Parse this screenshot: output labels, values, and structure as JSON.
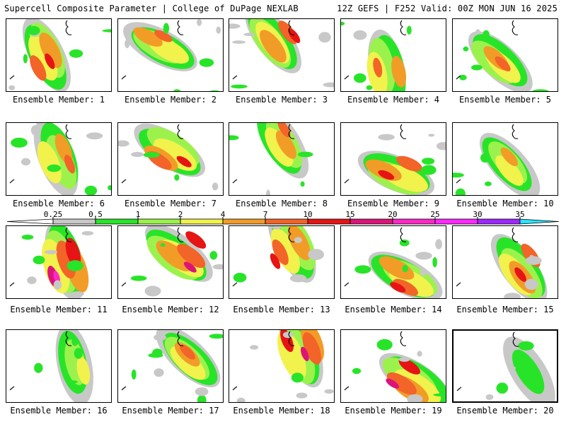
{
  "header": {
    "left": "Supercell Composite Parameter | College of DuPage NEXLAB",
    "right": "12Z GEFS | F252 Valid: 00Z MON JUN 16 2025"
  },
  "colorbar": {
    "levels": [
      "0.25",
      "0.5",
      "1",
      "2",
      "4",
      "7",
      "10",
      "15",
      "20",
      "25",
      "30",
      "35"
    ],
    "colors": [
      "#c8c8c8",
      "#28e428",
      "#9cf24c",
      "#f2f24c",
      "#f29c28",
      "#f26428",
      "#e61414",
      "#dc1478",
      "#ff28c8",
      "#ff28ff",
      "#a028ff",
      "#ff64ff",
      "#28e6ff"
    ]
  },
  "panels": [
    {
      "label": "Ensemble Member: 1",
      "max_level": "10"
    },
    {
      "label": "Ensemble Member: 2",
      "max_level": "7"
    },
    {
      "label": "Ensemble Member: 3",
      "max_level": "10"
    },
    {
      "label": "Ensemble Member: 4",
      "max_level": "7"
    },
    {
      "label": "Ensemble Member: 5",
      "max_level": "7"
    },
    {
      "label": "Ensemble Member: 6",
      "max_level": "7"
    },
    {
      "label": "Ensemble Member: 7",
      "max_level": "10"
    },
    {
      "label": "Ensemble Member: 8",
      "max_level": "7"
    },
    {
      "label": "Ensemble Member: 9",
      "max_level": "10"
    },
    {
      "label": "Ensemble Member: 10",
      "max_level": "4"
    },
    {
      "label": "Ensemble Member: 11",
      "max_level": "20"
    },
    {
      "label": "Ensemble Member: 12",
      "max_level": "15"
    },
    {
      "label": "Ensemble Member: 13",
      "max_level": "10"
    },
    {
      "label": "Ensemble Member: 14",
      "max_level": "10"
    },
    {
      "label": "Ensemble Member: 15",
      "max_level": "10"
    },
    {
      "label": "Ensemble Member: 16",
      "max_level": "2"
    },
    {
      "label": "Ensemble Member: 17",
      "max_level": "7"
    },
    {
      "label": "Ensemble Member: 18",
      "max_level": "15"
    },
    {
      "label": "Ensemble Member: 19",
      "max_level": "15"
    },
    {
      "label": "Ensemble Member: 20",
      "max_level": "0.5"
    }
  ]
}
